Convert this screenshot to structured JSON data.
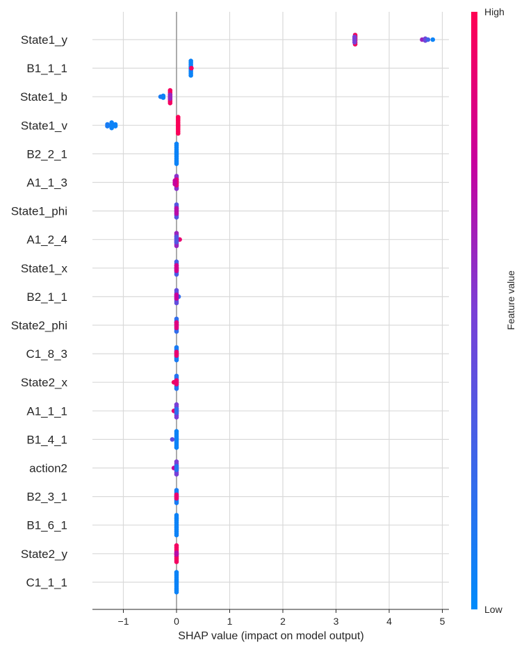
{
  "chart_data": {
    "type": "scatter",
    "subtype": "shap-beeswarm-summary",
    "xlabel": "SHAP value (impact on model output)",
    "xlim": [
      -1.6,
      5.1
    ],
    "xticks": [
      -1,
      0,
      1,
      2,
      3,
      4,
      5
    ],
    "xtick_labels": [
      "−1",
      "0",
      "1",
      "2",
      "3",
      "4",
      "5"
    ],
    "grid": true,
    "colorbar": {
      "label": "Feature value",
      "high_label": "High",
      "low_label": "Low",
      "low_color": "#008bfb",
      "high_color": "#ff0052"
    },
    "features": [
      {
        "name": "State1_y",
        "points": [
          {
            "x": 3.36,
            "f": 0.0,
            "n": 6
          },
          {
            "x": 3.36,
            "f": 1.0,
            "n": 6
          },
          {
            "x": 3.35,
            "f": 0.5,
            "n": 4
          },
          {
            "x": 4.62,
            "f": 0.6,
            "n": 1
          },
          {
            "x": 4.68,
            "f": 0.45,
            "n": 2
          },
          {
            "x": 4.73,
            "f": 0.25,
            "n": 1
          },
          {
            "x": 4.82,
            "f": 0.05,
            "n": 1
          }
        ]
      },
      {
        "name": "B1_1_1",
        "points": [
          {
            "x": 0.27,
            "f": 0.05,
            "n": 9
          },
          {
            "x": 0.28,
            "f": 0.95,
            "n": 1
          }
        ]
      },
      {
        "name": "State1_b",
        "points": [
          {
            "x": -0.12,
            "f": 0.95,
            "n": 8
          },
          {
            "x": -0.12,
            "f": 0.6,
            "n": 3
          },
          {
            "x": -0.25,
            "f": 0.05,
            "n": 2
          },
          {
            "x": -0.3,
            "f": 0.1,
            "n": 1
          }
        ]
      },
      {
        "name": "State1_v",
        "points": [
          {
            "x": -1.22,
            "f": 0.05,
            "n": 4
          },
          {
            "x": -1.3,
            "f": 0.1,
            "n": 2
          },
          {
            "x": -1.15,
            "f": 0.05,
            "n": 2
          },
          {
            "x": 0.03,
            "f": 0.98,
            "n": 10
          }
        ]
      },
      {
        "name": "B2_2_1",
        "points": [
          {
            "x": 0.0,
            "f": 0.05,
            "n": 12
          }
        ]
      },
      {
        "name": "A1_1_3",
        "points": [
          {
            "x": 0.0,
            "f": 0.55,
            "n": 8
          },
          {
            "x": 0.0,
            "f": 0.9,
            "n": 4
          },
          {
            "x": -0.03,
            "f": 0.75,
            "n": 3
          }
        ]
      },
      {
        "name": "State1_phi",
        "points": [
          {
            "x": 0.0,
            "f": 0.35,
            "n": 8
          },
          {
            "x": 0.0,
            "f": 0.7,
            "n": 4
          }
        ]
      },
      {
        "name": "A1_2_4",
        "points": [
          {
            "x": 0.0,
            "f": 0.6,
            "n": 8
          },
          {
            "x": 0.06,
            "f": 0.9,
            "n": 1
          },
          {
            "x": 0.0,
            "f": 0.35,
            "n": 4
          }
        ]
      },
      {
        "name": "State1_x",
        "points": [
          {
            "x": 0.0,
            "f": 0.3,
            "n": 8
          },
          {
            "x": 0.0,
            "f": 0.8,
            "n": 4
          }
        ]
      },
      {
        "name": "B2_1_1",
        "points": [
          {
            "x": 0.0,
            "f": 0.4,
            "n": 8
          },
          {
            "x": 0.04,
            "f": 0.2,
            "n": 1
          },
          {
            "x": 0.0,
            "f": 0.75,
            "n": 3
          }
        ]
      },
      {
        "name": "State2_phi",
        "points": [
          {
            "x": 0.0,
            "f": 0.2,
            "n": 8
          },
          {
            "x": 0.0,
            "f": 0.85,
            "n": 4
          }
        ]
      },
      {
        "name": "C1_8_3",
        "points": [
          {
            "x": 0.0,
            "f": 0.1,
            "n": 8
          },
          {
            "x": 0.0,
            "f": 0.9,
            "n": 3
          }
        ]
      },
      {
        "name": "State2_x",
        "points": [
          {
            "x": 0.0,
            "f": 0.15,
            "n": 8
          },
          {
            "x": -0.05,
            "f": 0.95,
            "n": 1
          },
          {
            "x": 0.0,
            "f": 0.9,
            "n": 3
          }
        ]
      },
      {
        "name": "A1_1_1",
        "points": [
          {
            "x": 0.0,
            "f": 0.5,
            "n": 8
          },
          {
            "x": -0.05,
            "f": 0.9,
            "n": 1
          },
          {
            "x": 0.0,
            "f": 0.2,
            "n": 3
          }
        ]
      },
      {
        "name": "B1_4_1",
        "points": [
          {
            "x": 0.0,
            "f": 0.05,
            "n": 10
          },
          {
            "x": -0.08,
            "f": 0.4,
            "n": 1
          }
        ]
      },
      {
        "name": "action2",
        "points": [
          {
            "x": 0.0,
            "f": 0.5,
            "n": 8
          },
          {
            "x": -0.05,
            "f": 0.75,
            "n": 1
          },
          {
            "x": 0.0,
            "f": 0.15,
            "n": 3
          }
        ]
      },
      {
        "name": "B2_3_1",
        "points": [
          {
            "x": 0.0,
            "f": 0.1,
            "n": 8
          },
          {
            "x": 0.0,
            "f": 0.9,
            "n": 3
          }
        ]
      },
      {
        "name": "B1_6_1",
        "points": [
          {
            "x": 0.0,
            "f": 0.05,
            "n": 12
          }
        ]
      },
      {
        "name": "State2_y",
        "points": [
          {
            "x": 0.0,
            "f": 0.95,
            "n": 10
          },
          {
            "x": 0.0,
            "f": 0.7,
            "n": 2
          }
        ]
      },
      {
        "name": "C1_1_1",
        "points": [
          {
            "x": 0.0,
            "f": 0.05,
            "n": 12
          }
        ]
      }
    ]
  }
}
